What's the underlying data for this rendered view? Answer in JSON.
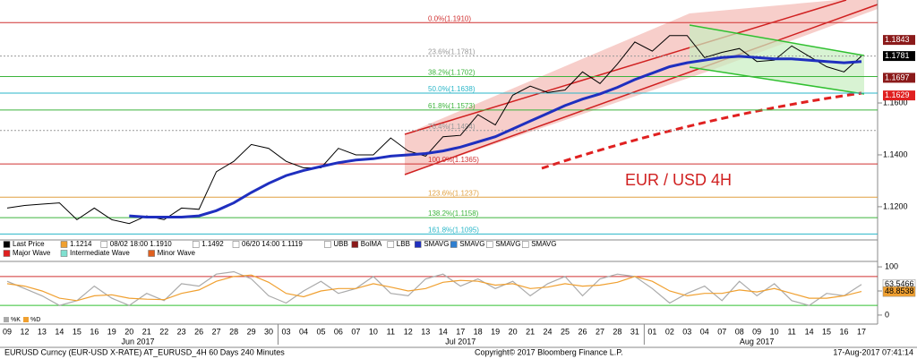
{
  "chart_data": {
    "type": "line",
    "annotation": "EUR / USD 4H",
    "categories": [
      "09",
      "12",
      "13",
      "14",
      "15",
      "16",
      "19",
      "20",
      "21",
      "22",
      "23",
      "26",
      "27",
      "28",
      "29",
      "30",
      "03",
      "04",
      "05",
      "06",
      "07",
      "10",
      "11",
      "12",
      "13",
      "14",
      "17",
      "18",
      "19",
      "20",
      "21",
      "24",
      "25",
      "26",
      "27",
      "28",
      "31",
      "01",
      "02",
      "03",
      "04",
      "07",
      "08",
      "09",
      "10",
      "11",
      "14",
      "15",
      "16",
      "17"
    ],
    "months": [
      "Jun 2017",
      "Jul 2017",
      "Aug 2017"
    ],
    "ylim": [
      1.1072,
      1.1997
    ],
    "yticks": [
      {
        "value": 1.12,
        "label": "1.1200"
      },
      {
        "value": 1.14,
        "label": "1.1400"
      },
      {
        "value": 1.16,
        "label": "1.1600"
      }
    ],
    "series": [
      {
        "name": "Last Price",
        "color": "#000000",
        "values": [
          1.1195,
          1.1205,
          1.121,
          1.1215,
          1.115,
          1.1195,
          1.115,
          1.1135,
          1.1165,
          1.115,
          1.1195,
          1.119,
          1.1335,
          1.1375,
          1.144,
          1.1425,
          1.1375,
          1.135,
          1.135,
          1.1425,
          1.14,
          1.14,
          1.1465,
          1.1415,
          1.1395,
          1.147,
          1.1475,
          1.1555,
          1.1515,
          1.163,
          1.1665,
          1.164,
          1.165,
          1.172,
          1.1675,
          1.175,
          1.1835,
          1.18,
          1.186,
          1.186,
          1.1775,
          1.1795,
          1.181,
          1.176,
          1.1765,
          1.182,
          1.178,
          1.174,
          1.172,
          1.1781
        ]
      },
      {
        "name": "SMAVG",
        "color": "#1f2fbf",
        "values": [
          null,
          null,
          null,
          null,
          null,
          null,
          null,
          1.1165,
          1.116,
          1.116,
          1.116,
          1.1165,
          1.1185,
          1.1215,
          1.1255,
          1.129,
          1.132,
          1.134,
          1.1355,
          1.137,
          1.138,
          1.1385,
          1.1395,
          1.14,
          1.1405,
          1.1415,
          1.143,
          1.145,
          1.147,
          1.15,
          1.153,
          1.156,
          1.159,
          1.1615,
          1.1635,
          1.166,
          1.169,
          1.1715,
          1.174,
          1.1755,
          1.1765,
          1.1775,
          1.178,
          1.1775,
          1.177,
          1.177,
          1.1765,
          1.176,
          1.1755,
          1.176
        ]
      }
    ],
    "fib_levels": [
      {
        "label": "0.0%(1.1910)",
        "value": 1.191,
        "color": "#d03030"
      },
      {
        "label": "23.6%(1.1781)",
        "value": 1.1781,
        "color": "#999999"
      },
      {
        "label": "38.2%(1.1702)",
        "value": 1.1702,
        "color": "#3cb43c"
      },
      {
        "label": "50.0%(1.1638)",
        "value": 1.1638,
        "color": "#29b6c8"
      },
      {
        "label": "61.8%(1.1573)",
        "value": 1.1573,
        "color": "#3cb43c"
      },
      {
        "label": "76.4%(1.1494)",
        "value": 1.1494,
        "color": "#999999"
      },
      {
        "label": "100.0%(1.1365)",
        "value": 1.1365,
        "color": "#d03030"
      },
      {
        "label": "123.6%(1.1237)",
        "value": 1.1237,
        "color": "#e0a040"
      },
      {
        "label": "138.2%(1.1158)",
        "value": 1.1158,
        "color": "#3cb43c"
      },
      {
        "label": "161.8%(1.1095)",
        "value": 1.1095,
        "color": "#29b6c8"
      }
    ],
    "price_tags": [
      {
        "value": 1.1843,
        "label": "1.1843",
        "color": "#8b1a1a"
      },
      {
        "value": 1.1781,
        "label": "1.1781",
        "color": "#000000"
      },
      {
        "value": 1.1697,
        "label": "1.1697",
        "color": "#8b1a1a"
      },
      {
        "value": 1.1629,
        "label": "1.1629",
        "color": "#e02020"
      }
    ],
    "legend": [
      {
        "name": "Last Price",
        "color": "#000000"
      },
      {
        "name": "1.1214",
        "color": "#f0a030"
      },
      {
        "name": "08/02 18:00 1.1910",
        "color": "#ffffff"
      },
      {
        "name": "1.1492",
        "color": "#ffffff"
      },
      {
        "name": "06/20 14:00 1.1119",
        "color": "#ffffff"
      },
      {
        "name": "UBB",
        "color": "#ffffff"
      },
      {
        "name": "BolMA",
        "color": "#8b1a1a"
      },
      {
        "name": "LBB",
        "color": "#ffffff"
      },
      {
        "name": "SMAVG",
        "color": "#1f2fbf"
      },
      {
        "name": "SMAVG",
        "color": "#2f7fd0"
      },
      {
        "name": "SMAVG",
        "color": "#ffffff"
      },
      {
        "name": "SMAVG",
        "color": "#ffffff"
      },
      {
        "name": "Major Wave",
        "color": "#e02020"
      },
      {
        "name": "Intermediate Wave",
        "color": "#80e0d0"
      },
      {
        "name": "Minor Wave",
        "color": "#e06020"
      }
    ],
    "oscillator": {
      "ylim": [
        -15,
        115
      ],
      "yticks": [
        0,
        50,
        100
      ],
      "levels": [
        80,
        20
      ],
      "series": [
        {
          "name": "%K",
          "color": "#aaaaaa",
          "values": [
            70,
            55,
            40,
            20,
            30,
            60,
            35,
            20,
            45,
            30,
            65,
            60,
            85,
            90,
            75,
            40,
            25,
            50,
            70,
            45,
            55,
            80,
            45,
            40,
            75,
            85,
            60,
            75,
            55,
            70,
            40,
            65,
            80,
            40,
            75,
            85,
            80,
            55,
            25,
            45,
            60,
            30,
            70,
            40,
            65,
            30,
            20,
            45,
            40,
            63.5466
          ]
        },
        {
          "name": "%D",
          "color": "#f0a030",
          "values": [
            65,
            60,
            50,
            35,
            30,
            40,
            42,
            35,
            33,
            32,
            45,
            52,
            70,
            80,
            83,
            68,
            45,
            38,
            50,
            55,
            55,
            65,
            58,
            50,
            55,
            68,
            72,
            70,
            62,
            65,
            55,
            58,
            65,
            60,
            62,
            68,
            80,
            70,
            50,
            40,
            45,
            45,
            52,
            48,
            55,
            45,
            35,
            35,
            40,
            48.8538
          ]
        }
      ],
      "tags": [
        {
          "value": 63.5466,
          "label": "63.5466",
          "color": "#ffffff"
        },
        {
          "value": 48.8538,
          "label": "48.8538",
          "color": "#f0a030"
        }
      ]
    },
    "footer": {
      "left": "EURUSD Curncy (EUR-USD X-RATE) AT_EURUSD_4H 60 Days 240 Minutes",
      "center": "Copyright© 2017 Bloomberg Finance L.P.",
      "right": "17-Aug-2017 07:41:14"
    }
  }
}
